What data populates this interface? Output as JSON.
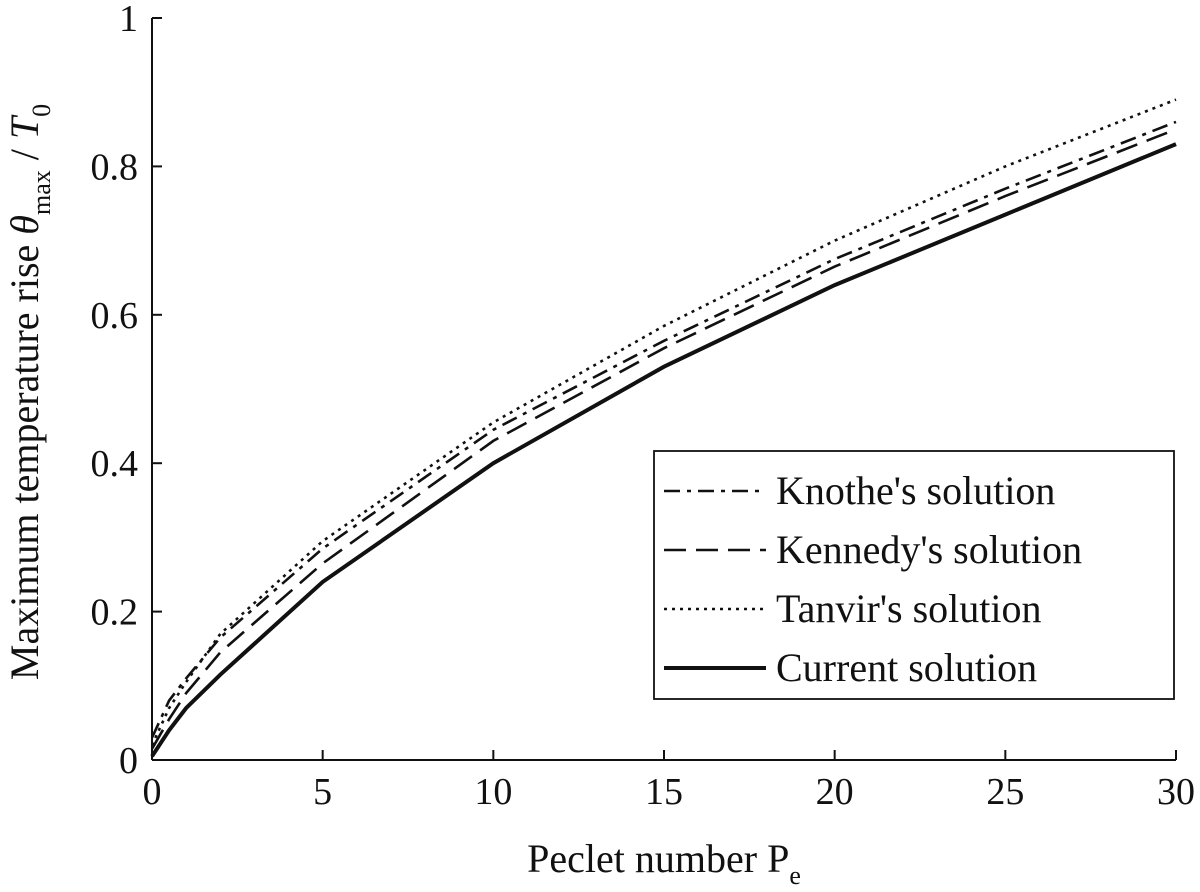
{
  "chart_data": {
    "type": "line",
    "xlabel": {
      "main": "Peclet number P",
      "sub": "e"
    },
    "ylabel": {
      "main": "Maximum temperature rise ",
      "theta": "θ",
      "sub1": "max",
      "slash": " / ",
      "T": "T",
      "sub2": "0"
    },
    "xlim": [
      0,
      30
    ],
    "ylim": [
      0,
      1
    ],
    "xticks": [
      0,
      5,
      10,
      15,
      20,
      25,
      30
    ],
    "yticks": [
      0,
      0.2,
      0.4,
      0.6,
      0.8,
      1
    ],
    "xtick_labels": [
      "0",
      "5",
      "10",
      "15",
      "20",
      "25",
      "30"
    ],
    "ytick_labels": [
      "0",
      "0.2",
      "0.4",
      "0.6",
      "0.8",
      "1"
    ],
    "grid": false,
    "legend_position": "bottom-right",
    "series": [
      {
        "name": "Knothe's solution",
        "style": "dashdot",
        "x": [
          0,
          0.5,
          1,
          2,
          5,
          10,
          15,
          20,
          25,
          30
        ],
        "y": [
          0.03,
          0.08,
          0.11,
          0.165,
          0.285,
          0.445,
          0.565,
          0.675,
          0.77,
          0.86
        ]
      },
      {
        "name": "Kennedy's solution",
        "style": "dashed",
        "x": [
          0,
          0.5,
          1,
          2,
          5,
          10,
          15,
          20,
          25,
          30
        ],
        "y": [
          0.015,
          0.055,
          0.09,
          0.145,
          0.265,
          0.43,
          0.555,
          0.665,
          0.76,
          0.85
        ]
      },
      {
        "name": "Tanvir's solution",
        "style": "dotted",
        "x": [
          0,
          0.5,
          1,
          2,
          5,
          10,
          15,
          20,
          25,
          30
        ],
        "y": [
          0.02,
          0.07,
          0.105,
          0.17,
          0.295,
          0.455,
          0.585,
          0.7,
          0.8,
          0.89
        ]
      },
      {
        "name": "Current solution",
        "style": "solid",
        "x": [
          0,
          0.5,
          1,
          2,
          5,
          10,
          15,
          20,
          25,
          30
        ],
        "y": [
          0.005,
          0.04,
          0.07,
          0.115,
          0.24,
          0.4,
          0.53,
          0.64,
          0.735,
          0.83
        ]
      }
    ],
    "colors": {
      "line": "#111111",
      "background": "#ffffff"
    }
  }
}
